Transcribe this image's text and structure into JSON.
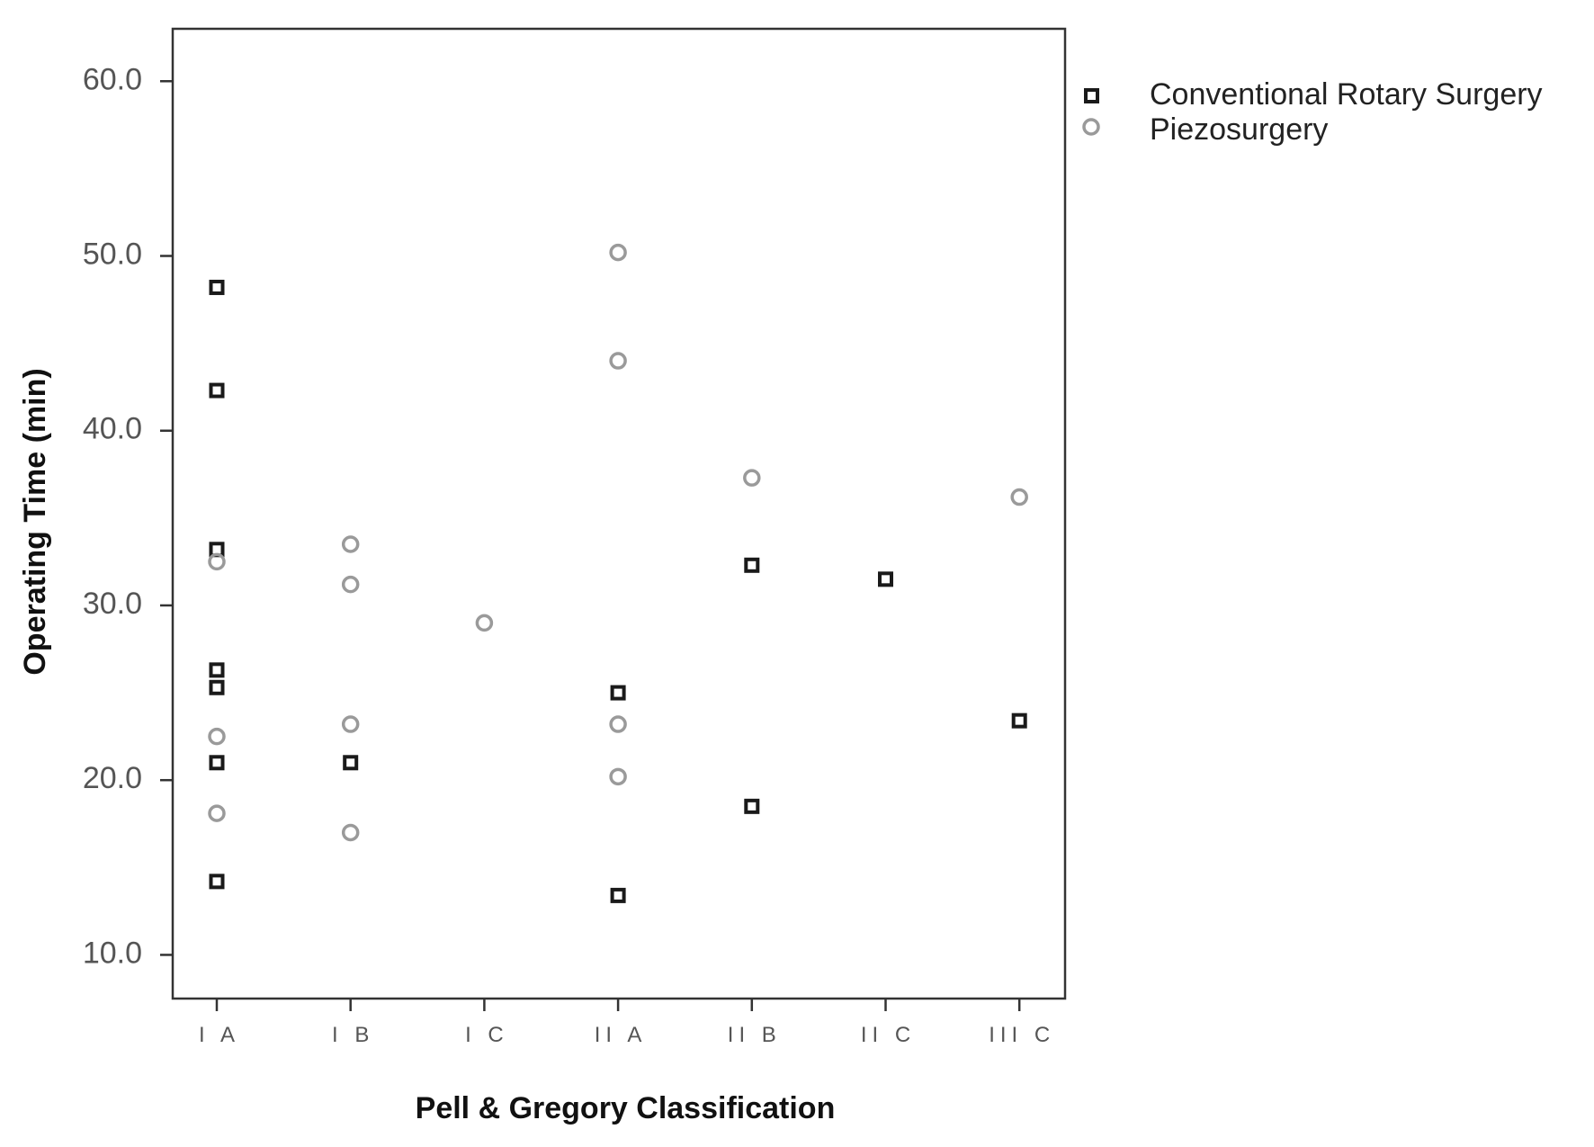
{
  "chart_data": {
    "type": "scatter",
    "title": "",
    "xlabel": "Pell & Gregory Classification",
    "ylabel": "Operating  Time  (min)",
    "categories": [
      "I A",
      "I B",
      "I C",
      "II A",
      "II B",
      "II C",
      "III C"
    ],
    "ylim": [
      7.5,
      63.0
    ],
    "yticks": [
      10.0,
      20.0,
      30.0,
      40.0,
      50.0,
      60.0
    ],
    "ytick_labels": [
      "10.0",
      "20.0",
      "30.0",
      "40.0",
      "50.0",
      "60.0"
    ],
    "grid": false,
    "legend_position": "top-right-outside",
    "series": [
      {
        "name": "Conventional Rotary Surgery",
        "marker": "square",
        "color": "#1a1a1a",
        "points": [
          {
            "category": "I A",
            "y": 48.2
          },
          {
            "category": "I A",
            "y": 42.3
          },
          {
            "category": "I A",
            "y": 33.2
          },
          {
            "category": "I A",
            "y": 26.3
          },
          {
            "category": "I A",
            "y": 25.3
          },
          {
            "category": "I A",
            "y": 21.0
          },
          {
            "category": "I A",
            "y": 14.2
          },
          {
            "category": "I B",
            "y": 21.0
          },
          {
            "category": "II A",
            "y": 25.0
          },
          {
            "category": "II A",
            "y": 13.4
          },
          {
            "category": "II B",
            "y": 32.3
          },
          {
            "category": "II B",
            "y": 18.5
          },
          {
            "category": "II C",
            "y": 31.5
          },
          {
            "category": "III C",
            "y": 23.4
          }
        ]
      },
      {
        "name": "Piezosurgery",
        "marker": "circle",
        "color": "#9a9a9a",
        "points": [
          {
            "category": "I A",
            "y": 32.5
          },
          {
            "category": "I A",
            "y": 22.5
          },
          {
            "category": "I A",
            "y": 18.1
          },
          {
            "category": "I B",
            "y": 33.5
          },
          {
            "category": "I B",
            "y": 31.2
          },
          {
            "category": "I B",
            "y": 23.2
          },
          {
            "category": "I B",
            "y": 17.0
          },
          {
            "category": "I C",
            "y": 29.0
          },
          {
            "category": "II A",
            "y": 50.2
          },
          {
            "category": "II A",
            "y": 44.0
          },
          {
            "category": "II A",
            "y": 23.2
          },
          {
            "category": "II A",
            "y": 20.2
          },
          {
            "category": "II B",
            "y": 37.3
          },
          {
            "category": "III C",
            "y": 36.2
          }
        ]
      }
    ]
  }
}
